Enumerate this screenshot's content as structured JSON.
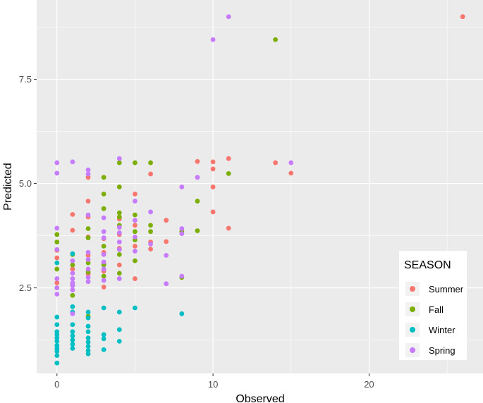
{
  "chart_data": {
    "type": "scatter",
    "title": "",
    "xlabel": "Observed",
    "ylabel": "Predicted",
    "xlim": [
      -1.3,
      27.3
    ],
    "ylim": [
      0.45,
      9.4
    ],
    "xticks": [
      0,
      10,
      20
    ],
    "yticks": [
      2.5,
      5.0,
      7.5
    ],
    "ytick_labels": [
      "2.5",
      "5.0",
      "7.5"
    ],
    "grid": true,
    "legend_title": "SEASON",
    "legend_position": "right",
    "series": [
      {
        "name": "Summer",
        "color": "#F8766D",
        "points": [
          [
            0,
            3.4
          ],
          [
            0,
            3.22
          ],
          [
            0,
            2.62
          ],
          [
            1,
            4.26
          ],
          [
            1,
            3.88
          ],
          [
            1,
            2.95
          ],
          [
            2,
            5.15
          ],
          [
            2,
            4.58
          ],
          [
            2,
            4.2
          ],
          [
            2,
            3.72
          ],
          [
            2,
            3.28
          ],
          [
            2,
            2.83
          ],
          [
            3,
            3.68
          ],
          [
            3,
            3.35
          ],
          [
            3,
            3.1
          ],
          [
            3,
            2.9
          ],
          [
            3,
            2.52
          ],
          [
            4,
            4.15
          ],
          [
            4,
            3.78
          ],
          [
            4,
            3.45
          ],
          [
            4,
            3.05
          ],
          [
            5,
            4.75
          ],
          [
            5,
            4.0
          ],
          [
            5,
            3.5
          ],
          [
            5,
            2.72
          ],
          [
            6,
            5.23
          ],
          [
            6,
            3.6
          ],
          [
            6,
            3.43
          ],
          [
            7,
            4.12
          ],
          [
            7,
            3.61
          ],
          [
            10,
            5.52
          ],
          [
            10,
            5.35
          ],
          [
            10,
            4.92
          ],
          [
            10,
            4.32
          ],
          [
            9,
            5.53
          ],
          [
            11,
            5.6
          ],
          [
            11,
            3.93
          ],
          [
            14,
            5.5
          ],
          [
            15,
            5.25
          ],
          [
            26,
            9.0
          ]
        ]
      },
      {
        "name": "Fall",
        "color": "#7CAE00",
        "points": [
          [
            0,
            3.78
          ],
          [
            0,
            3.6
          ],
          [
            0,
            2.95
          ],
          [
            0,
            2.5
          ],
          [
            1,
            3.3
          ],
          [
            1,
            3.05
          ],
          [
            1,
            2.58
          ],
          [
            1,
            2.32
          ],
          [
            2,
            3.92
          ],
          [
            2,
            3.7
          ],
          [
            2,
            3.1
          ],
          [
            2,
            2.88
          ],
          [
            2,
            1.82
          ],
          [
            3,
            5.15
          ],
          [
            3,
            4.75
          ],
          [
            3,
            4.4
          ],
          [
            3,
            3.5
          ],
          [
            3,
            3.05
          ],
          [
            3,
            2.78
          ],
          [
            4,
            5.5
          ],
          [
            4,
            4.92
          ],
          [
            4,
            4.3
          ],
          [
            4,
            4.2
          ],
          [
            4,
            4.0
          ],
          [
            4,
            3.3
          ],
          [
            4,
            2.85
          ],
          [
            5,
            5.5
          ],
          [
            5,
            4.25
          ],
          [
            5,
            3.85
          ],
          [
            5,
            3.65
          ],
          [
            5,
            3.15
          ],
          [
            6,
            5.5
          ],
          [
            6,
            4.0
          ],
          [
            6,
            3.85
          ],
          [
            8,
            3.85
          ],
          [
            8,
            2.75
          ],
          [
            9,
            4.58
          ],
          [
            9,
            3.87
          ],
          [
            11,
            5.24
          ],
          [
            14,
            8.45
          ]
        ]
      },
      {
        "name": "Winter",
        "color": "#00BFC4",
        "points": [
          [
            0,
            3.1
          ],
          [
            0,
            1.8
          ],
          [
            0,
            1.62
          ],
          [
            0,
            1.45
          ],
          [
            0,
            1.38
          ],
          [
            0,
            1.3
          ],
          [
            0,
            1.22
          ],
          [
            0,
            1.12
          ],
          [
            0,
            1.05
          ],
          [
            0,
            0.98
          ],
          [
            0,
            0.88
          ],
          [
            0,
            0.7
          ],
          [
            1,
            3.32
          ],
          [
            1,
            2.05
          ],
          [
            1,
            1.92
          ],
          [
            1,
            1.62
          ],
          [
            1,
            1.45
          ],
          [
            1,
            1.35
          ],
          [
            1,
            1.25
          ],
          [
            1,
            1.15
          ],
          [
            1,
            1.05
          ],
          [
            2,
            1.92
          ],
          [
            2,
            1.78
          ],
          [
            2,
            1.58
          ],
          [
            2,
            1.45
          ],
          [
            2,
            1.3
          ],
          [
            2,
            1.2
          ],
          [
            2,
            1.1
          ],
          [
            2,
            1.0
          ],
          [
            2,
            0.92
          ],
          [
            3,
            2.02
          ],
          [
            3,
            1.38
          ],
          [
            3,
            1.28
          ],
          [
            3,
            1.02
          ],
          [
            4,
            1.92
          ],
          [
            4,
            1.5
          ],
          [
            4,
            1.22
          ],
          [
            5,
            2.02
          ],
          [
            8,
            1.88
          ]
        ]
      },
      {
        "name": "Spring",
        "color": "#C77CFF",
        "points": [
          [
            0,
            5.5
          ],
          [
            0,
            5.25
          ],
          [
            0,
            3.93
          ],
          [
            0,
            3.42
          ],
          [
            0,
            2.72
          ],
          [
            0,
            2.5
          ],
          [
            0,
            2.35
          ],
          [
            1,
            5.52
          ],
          [
            1,
            3.15
          ],
          [
            1,
            2.85
          ],
          [
            1,
            2.72
          ],
          [
            1,
            2.62
          ],
          [
            1,
            2.55
          ],
          [
            1,
            2.45
          ],
          [
            1,
            1.88
          ],
          [
            2,
            5.33
          ],
          [
            2,
            5.23
          ],
          [
            2,
            4.25
          ],
          [
            2,
            3.35
          ],
          [
            2,
            3.18
          ],
          [
            2,
            2.95
          ],
          [
            2,
            2.75
          ],
          [
            2,
            2.65
          ],
          [
            3,
            4.18
          ],
          [
            3,
            3.85
          ],
          [
            3,
            3.7
          ],
          [
            3,
            3.3
          ],
          [
            3,
            3.12
          ],
          [
            3,
            2.95
          ],
          [
            3,
            2.68
          ],
          [
            4,
            5.6
          ],
          [
            4,
            3.95
          ],
          [
            4,
            3.82
          ],
          [
            4,
            3.6
          ],
          [
            4,
            3.42
          ],
          [
            4,
            2.72
          ],
          [
            5,
            4.58
          ],
          [
            5,
            4.12
          ],
          [
            5,
            3.72
          ],
          [
            5,
            3.38
          ],
          [
            6,
            4.32
          ],
          [
            6,
            3.55
          ],
          [
            7,
            3.28
          ],
          [
            7,
            2.6
          ],
          [
            8,
            4.92
          ],
          [
            8,
            3.92
          ],
          [
            8,
            3.8
          ],
          [
            8,
            2.78
          ],
          [
            9,
            5.15
          ],
          [
            10,
            8.45
          ],
          [
            11,
            9.0
          ],
          [
            15,
            5.5
          ]
        ]
      }
    ]
  }
}
